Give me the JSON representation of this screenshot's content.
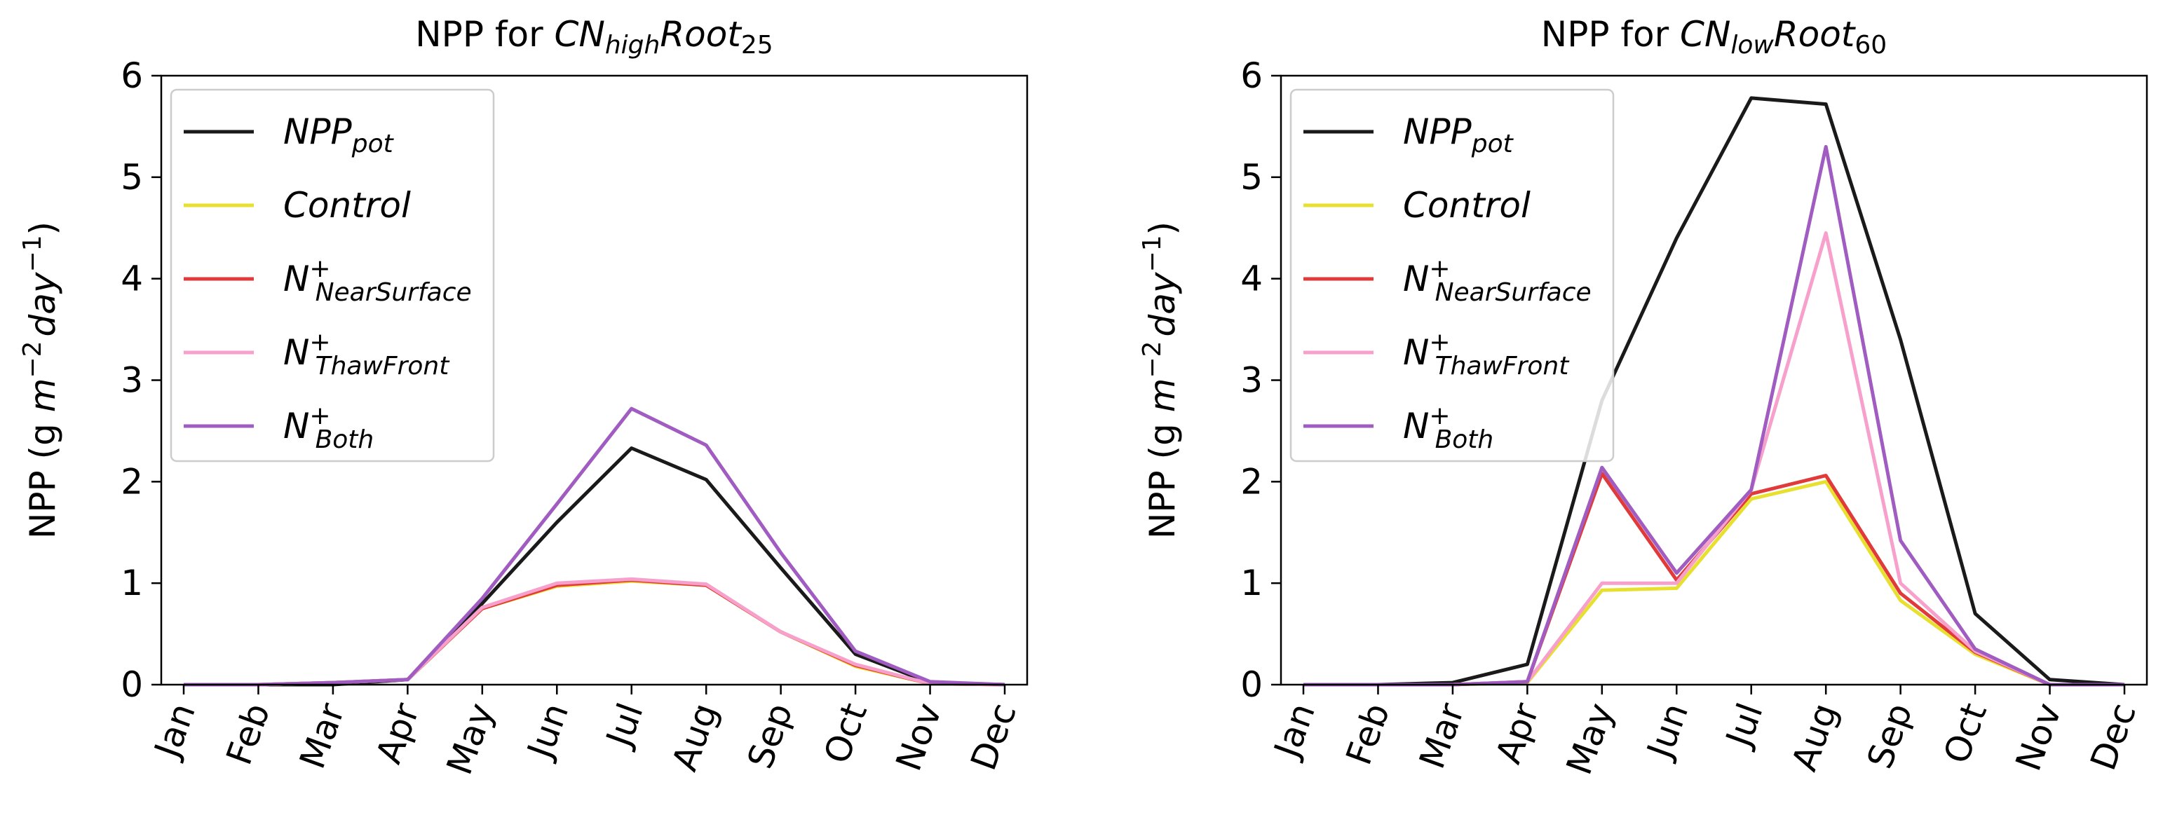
{
  "chart_data": [
    {
      "type": "line",
      "title": {
        "prefix": "NPP for ",
        "var": "CN",
        "var_sub": "high",
        "rest": "Root",
        "rest_sub": "25"
      },
      "xlabel": "",
      "ylabel": {
        "main": "NPP (g ",
        "m": "m",
        "m_sup": "−2",
        "day": "day",
        "day_sup": "−1",
        "close": ")"
      },
      "categories": [
        "Jan",
        "Feb",
        "Mar",
        "Apr",
        "May",
        "Jun",
        "Jul",
        "Aug",
        "Sep",
        "Oct",
        "Nov",
        "Dec"
      ],
      "ylim": [
        0,
        6
      ],
      "yticks": [
        0,
        1,
        2,
        3,
        4,
        5,
        6
      ],
      "ytick_labels": [
        "0",
        "1",
        "2",
        "3",
        "4",
        "5",
        "6"
      ],
      "legend_position": "upper-left",
      "series": [
        {
          "name": "NPP_pot",
          "color": "#1a1a1a",
          "values": [
            0,
            0,
            0,
            0.05,
            0.8,
            1.6,
            2.33,
            2.02,
            1.15,
            0.3,
            0.02,
            0
          ]
        },
        {
          "name": "Control",
          "color": "#e8e030",
          "values": [
            0,
            0,
            0.02,
            0.05,
            0.75,
            0.97,
            1.02,
            0.98,
            0.52,
            0.18,
            0.01,
            0
          ]
        },
        {
          "name": "N+ NearSurface",
          "color": "#e03a3a",
          "values": [
            0,
            0,
            0.02,
            0.05,
            0.75,
            0.98,
            1.03,
            0.98,
            0.52,
            0.19,
            0.01,
            0
          ]
        },
        {
          "name": "N+ ThawFront",
          "color": "#f7a0cc",
          "values": [
            0,
            0,
            0.02,
            0.05,
            0.76,
            1.0,
            1.04,
            0.99,
            0.52,
            0.2,
            0.01,
            0
          ]
        },
        {
          "name": "N+ Both",
          "color": "#a05cc0",
          "values": [
            0,
            0,
            0.02,
            0.05,
            0.85,
            1.78,
            2.72,
            2.36,
            1.3,
            0.33,
            0.03,
            0
          ]
        }
      ]
    },
    {
      "type": "line",
      "title": {
        "prefix": "NPP for ",
        "var": "CN",
        "var_sub": "low",
        "rest": "Root",
        "rest_sub": "60"
      },
      "xlabel": "",
      "ylabel": {
        "main": "NPP (g ",
        "m": "m",
        "m_sup": "−2",
        "day": "day",
        "day_sup": "−1",
        "close": ")"
      },
      "categories": [
        "Jan",
        "Feb",
        "Mar",
        "Apr",
        "May",
        "Jun",
        "Jul",
        "Aug",
        "Sep",
        "Oct",
        "Nov",
        "Dec"
      ],
      "ylim": [
        0,
        6
      ],
      "yticks": [
        0,
        1,
        2,
        3,
        4,
        5,
        6
      ],
      "ytick_labels": [
        "0",
        "1",
        "2",
        "3",
        "4",
        "5",
        "6"
      ],
      "legend_position": "upper-left",
      "series": [
        {
          "name": "NPP_pot",
          "color": "#1a1a1a",
          "values": [
            0,
            0,
            0.02,
            0.2,
            2.8,
            4.4,
            5.78,
            5.72,
            3.4,
            0.7,
            0.05,
            0
          ]
        },
        {
          "name": "Control",
          "color": "#e8e030",
          "values": [
            0,
            0,
            0,
            0.02,
            0.93,
            0.95,
            1.83,
            2.0,
            0.83,
            0.3,
            0,
            0
          ]
        },
        {
          "name": "N+ NearSurface",
          "color": "#e03a3a",
          "values": [
            0,
            0,
            0,
            0.03,
            2.08,
            1.03,
            1.88,
            2.06,
            0.9,
            0.32,
            0,
            0
          ]
        },
        {
          "name": "N+ ThawFront",
          "color": "#f7a0cc",
          "values": [
            0,
            0,
            0,
            0.03,
            1.0,
            1.0,
            1.92,
            4.45,
            1.0,
            0.33,
            0,
            0
          ]
        },
        {
          "name": "N+ Both",
          "color": "#a05cc0",
          "values": [
            0,
            0,
            0,
            0.03,
            2.14,
            1.1,
            1.92,
            5.3,
            1.42,
            0.35,
            0,
            0
          ]
        }
      ]
    }
  ],
  "legend": [
    {
      "base": "NPP",
      "sub": "pot",
      "sup": "",
      "color": "#1a1a1a"
    },
    {
      "base": "Control",
      "sub": "",
      "sup": "",
      "color": "#e8e030"
    },
    {
      "base": "N",
      "sub": "NearSurface",
      "sup": "+",
      "color": "#e03a3a"
    },
    {
      "base": "N",
      "sub": "ThawFront",
      "sup": "+",
      "color": "#f7a0cc"
    },
    {
      "base": "N",
      "sub": "Both",
      "sup": "+",
      "color": "#a05cc0"
    }
  ]
}
